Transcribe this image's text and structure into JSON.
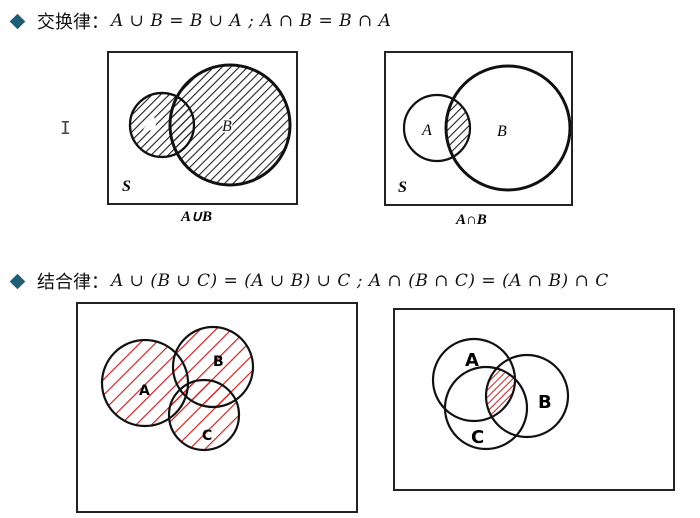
{
  "commutative": {
    "label": "交换律：",
    "formula": "A ∪ B = B ∪ A ; A ∩ B = B ∩ A",
    "diagram1": {
      "universe": "S",
      "set_a": "A",
      "set_b": "B",
      "caption": "A∪B"
    },
    "diagram2": {
      "universe": "S",
      "set_a": "A",
      "set_b": "B",
      "caption": "A∩B"
    }
  },
  "associative": {
    "label": "结合律：",
    "formula": "A ∪ (B ∪ C) = (A ∪ B) ∪ C ; A ∩ (B ∩ C) = (A ∩ B) ∩ C",
    "diagram3": {
      "set_a": "A",
      "set_b": "B",
      "set_c": "C"
    },
    "diagram4": {
      "set_a": "A",
      "set_b": "B",
      "set_c": "C"
    }
  },
  "colors": {
    "bullet": "#1f5d77",
    "hatch_dark": "#222222",
    "hatch_red": "#cc2222"
  }
}
